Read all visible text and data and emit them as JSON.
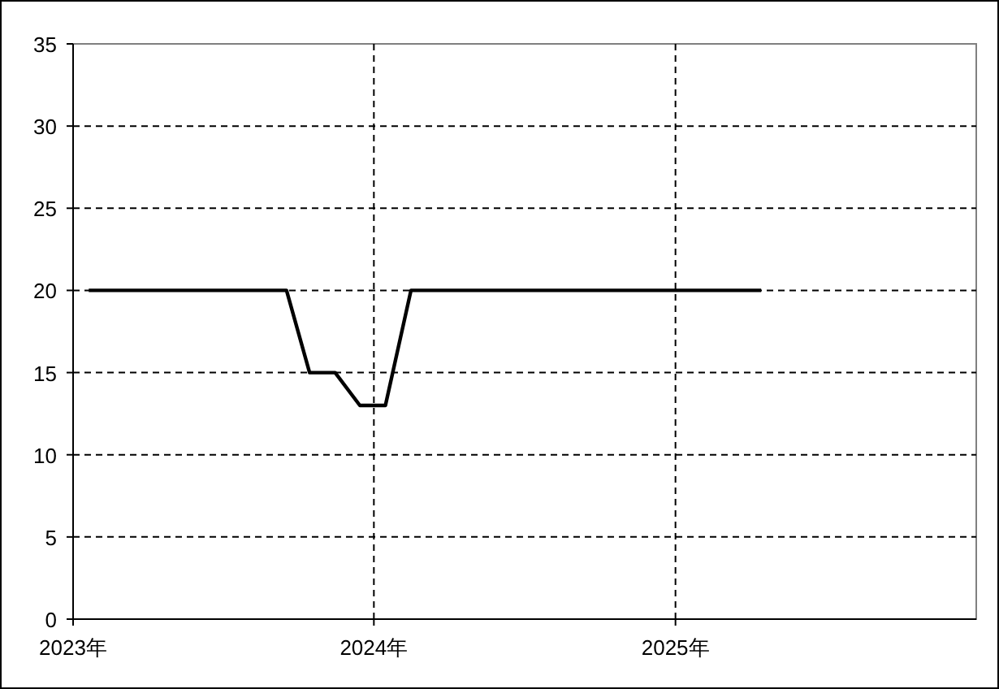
{
  "chart_data": {
    "type": "line",
    "x": [
      "2023-01-20",
      "2023-09-17",
      "2023-10-15",
      "2023-11-15",
      "2023-12-15",
      "2024-01-15",
      "2024-02-15",
      "2025-04-15"
    ],
    "series": [
      {
        "color": "#000000",
        "values": [
          20,
          20,
          15,
          15,
          13,
          13,
          20,
          20
        ]
      }
    ],
    "xlim": [
      "2023",
      "2026"
    ],
    "xticks": [
      {
        "value": "2023",
        "label": "2023年"
      },
      {
        "value": "2024",
        "label": "2024年"
      },
      {
        "value": "2025",
        "label": "2025年"
      }
    ],
    "ylim": [
      0,
      35
    ],
    "yticks": [
      0,
      5,
      10,
      15,
      20,
      25,
      30,
      35
    ],
    "grid": true,
    "line_style": "solid",
    "marker": "none"
  }
}
